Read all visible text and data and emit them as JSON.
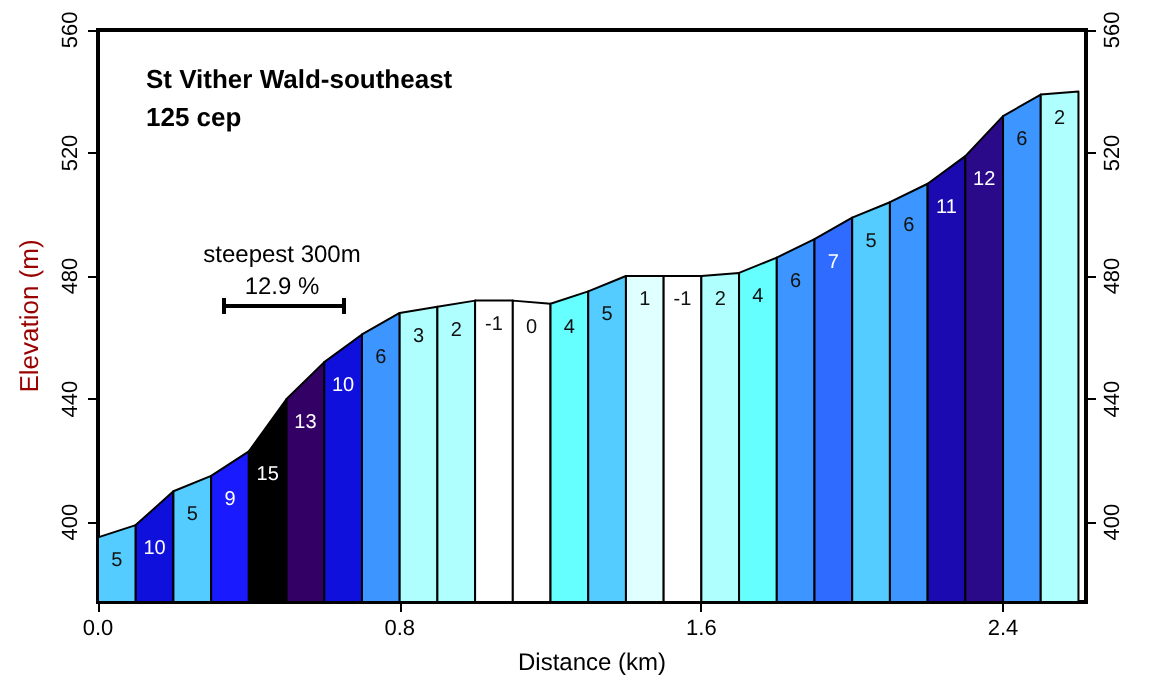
{
  "chart_data": {
    "type": "area",
    "title": "St Vither Wald-southeast",
    "subtitle": "125 cep",
    "xlabel": "Distance (km)",
    "ylabel": "Elevation (m)",
    "xlim": [
      0,
      2.62
    ],
    "xticks": [
      {
        "value": 0,
        "label": "0.0"
      },
      0.8,
      1.6,
      2.4
    ],
    "ylim": [
      374,
      560
    ],
    "yticks": [
      400,
      440,
      480,
      520,
      560
    ],
    "y2lim": [
      374,
      560
    ],
    "y2ticks": [
      400,
      440,
      480,
      520,
      560
    ],
    "grid": false,
    "series": [
      {
        "x": [
          0,
          0.1
        ],
        "values": [
          395,
          399
        ],
        "color": "#55ccff"
      },
      {
        "x": [
          0.1,
          0.2
        ],
        "values": [
          399,
          410
        ],
        "color": "#1010dd"
      },
      {
        "x": [
          0.2,
          0.3
        ],
        "values": [
          410,
          415
        ],
        "color": "#55ccff"
      },
      {
        "x": [
          0.3,
          0.4
        ],
        "values": [
          415,
          423
        ],
        "color": "#1a1aff"
      },
      {
        "x": [
          0.4,
          0.5
        ],
        "values": [
          423,
          440
        ],
        "color": "#000000"
      },
      {
        "x": [
          0.5,
          0.6
        ],
        "values": [
          440,
          452
        ],
        "color": "#330066"
      },
      {
        "x": [
          0.6,
          0.7
        ],
        "values": [
          452,
          461
        ],
        "color": "#1010dd"
      },
      {
        "x": [
          0.7,
          0.8
        ],
        "values": [
          461,
          468
        ],
        "color": "#3d96ff"
      },
      {
        "x": [
          0.8,
          0.9
        ],
        "values": [
          468,
          470
        ],
        "color": "#b0ffff"
      },
      {
        "x": [
          0.9,
          1.0
        ],
        "values": [
          470,
          472
        ],
        "color": "#b0ffff"
      },
      {
        "x": [
          1.0,
          1.1
        ],
        "values": [
          472,
          472
        ],
        "color": "#ffffff"
      },
      {
        "x": [
          1.1,
          1.2
        ],
        "values": [
          472,
          471
        ],
        "color": "#ffffff"
      },
      {
        "x": [
          1.2,
          1.3
        ],
        "values": [
          471,
          475
        ],
        "color": "#66ffff"
      },
      {
        "x": [
          1.3,
          1.4
        ],
        "values": [
          475,
          480
        ],
        "color": "#55ccff"
      },
      {
        "x": [
          1.4,
          1.5
        ],
        "values": [
          480,
          480
        ],
        "color": "#e0ffff"
      },
      {
        "x": [
          1.5,
          1.6
        ],
        "values": [
          480,
          480
        ],
        "color": "#ffffff"
      },
      {
        "x": [
          1.6,
          1.7
        ],
        "values": [
          480,
          481
        ],
        "color": "#b0ffff"
      },
      {
        "x": [
          1.7,
          1.8
        ],
        "values": [
          481,
          486
        ],
        "color": "#66ffff"
      },
      {
        "x": [
          1.8,
          1.9
        ],
        "values": [
          486,
          492
        ],
        "color": "#3d96ff"
      },
      {
        "x": [
          1.9,
          2.0
        ],
        "values": [
          492,
          499
        ],
        "color": "#2f6bff"
      },
      {
        "x": [
          2.0,
          2.1
        ],
        "values": [
          499,
          504
        ],
        "color": "#55ccff"
      },
      {
        "x": [
          2.1,
          2.2
        ],
        "values": [
          504,
          510
        ],
        "color": "#3d96ff"
      },
      {
        "x": [
          2.2,
          2.3
        ],
        "values": [
          510,
          519
        ],
        "color": "#1a0ab0"
      },
      {
        "x": [
          2.3,
          2.4
        ],
        "values": [
          519,
          532
        ],
        "color": "#2a0a88"
      },
      {
        "x": [
          2.4,
          2.5
        ],
        "values": [
          532,
          539
        ],
        "color": "#3d96ff"
      },
      {
        "x": [
          2.5,
          2.6
        ],
        "values": [
          539,
          540
        ],
        "color": "#b0ffff"
      }
    ],
    "annotations": [
      "steepest 300m",
      "12.9 %",
      "5",
      "10",
      "5",
      "9",
      "15",
      "13",
      "10",
      "6",
      "3",
      "2",
      "-1",
      "0",
      "4",
      "5",
      "1",
      "-1",
      "2",
      "4",
      "6",
      "7",
      "5",
      "6",
      "11",
      "12",
      "6",
      "2"
    ]
  }
}
